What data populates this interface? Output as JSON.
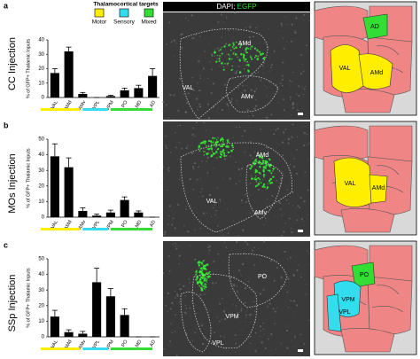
{
  "figure": {
    "legend": {
      "title": "Thalamocortical targets",
      "items": [
        {
          "name": "Motor",
          "color": "#ffee00"
        },
        {
          "name": "Sensory",
          "color": "#33ddee"
        },
        {
          "name": "Mixed",
          "color": "#33dd33"
        }
      ]
    },
    "image_header": {
      "text": "DAPI;",
      "highlight": "EGFP"
    }
  },
  "panels": [
    {
      "letter": "a",
      "injection": "CC Injection",
      "image_labels": [
        "VAL",
        "AMd",
        "AMv"
      ],
      "atlas_labels": [
        "AD",
        "VAL",
        "AMd"
      ]
    },
    {
      "letter": "b",
      "injection": "MOs Injection",
      "image_labels": [
        "AMd",
        "VAL",
        "AMv"
      ],
      "atlas_labels": [
        "VAL",
        "AMd"
      ]
    },
    {
      "letter": "c",
      "injection": "SSp Injection",
      "image_labels": [
        "PO",
        "VPM",
        "VPL"
      ],
      "atlas_labels": [
        "PO",
        "VPM",
        "VPL"
      ]
    }
  ],
  "chart_data": [
    {
      "type": "bar",
      "y_label": "% of GFP+ Thalamic Inputs",
      "categories": [
        "VAL",
        "AMd",
        "AMv",
        "VPL",
        "VPM",
        "PO",
        "MD",
        "AD"
      ],
      "values": [
        17,
        32,
        2.5,
        0,
        1,
        5,
        6.5,
        15
      ],
      "errors": [
        3,
        3,
        1,
        0,
        0.5,
        1.5,
        2,
        5
      ],
      "color": "#000000",
      "ylim": [
        0,
        40
      ],
      "yticks": [
        0,
        10,
        20,
        30,
        40
      ],
      "category_colors": [
        "#ffee00",
        "#ffee00",
        "#ffee00",
        "#33ddee",
        "#33ddee",
        "#33dd33",
        "#33dd33",
        "#33dd33"
      ]
    },
    {
      "type": "bar",
      "y_label": "% of GFP+ Thalamic Inputs",
      "categories": [
        "VAL",
        "AMd",
        "AMv",
        "VPL",
        "VPM",
        "PO",
        "MD",
        "AD"
      ],
      "values": [
        39,
        32,
        4,
        1,
        3,
        11,
        3,
        0
      ],
      "errors": [
        8,
        6,
        2,
        1,
        1.5,
        2,
        1,
        0
      ],
      "color": "#000000",
      "ylim": [
        0,
        50
      ],
      "yticks": [
        0,
        10,
        20,
        30,
        40,
        50
      ],
      "category_colors": [
        "#ffee00",
        "#ffee00",
        "#ffee00",
        "#33ddee",
        "#33ddee",
        "#33dd33",
        "#33dd33",
        "#33dd33"
      ]
    },
    {
      "type": "bar",
      "y_label": "% of GFP+ Thalamic Inputs",
      "categories": [
        "VAL",
        "AMd",
        "AMv",
        "VPL",
        "VPM",
        "PO",
        "MD",
        "AD"
      ],
      "values": [
        13,
        3,
        2,
        35,
        26,
        14,
        0,
        0
      ],
      "errors": [
        4,
        1.5,
        1.5,
        9,
        5,
        4,
        0,
        0
      ],
      "color": "#000000",
      "ylim": [
        0,
        50
      ],
      "yticks": [
        0,
        10,
        20,
        30,
        40,
        50
      ],
      "category_colors": [
        "#ffee00",
        "#ffee00",
        "#ffee00",
        "#33ddee",
        "#33ddee",
        "#33dd33",
        "#33dd33",
        "#33dd33"
      ]
    }
  ]
}
